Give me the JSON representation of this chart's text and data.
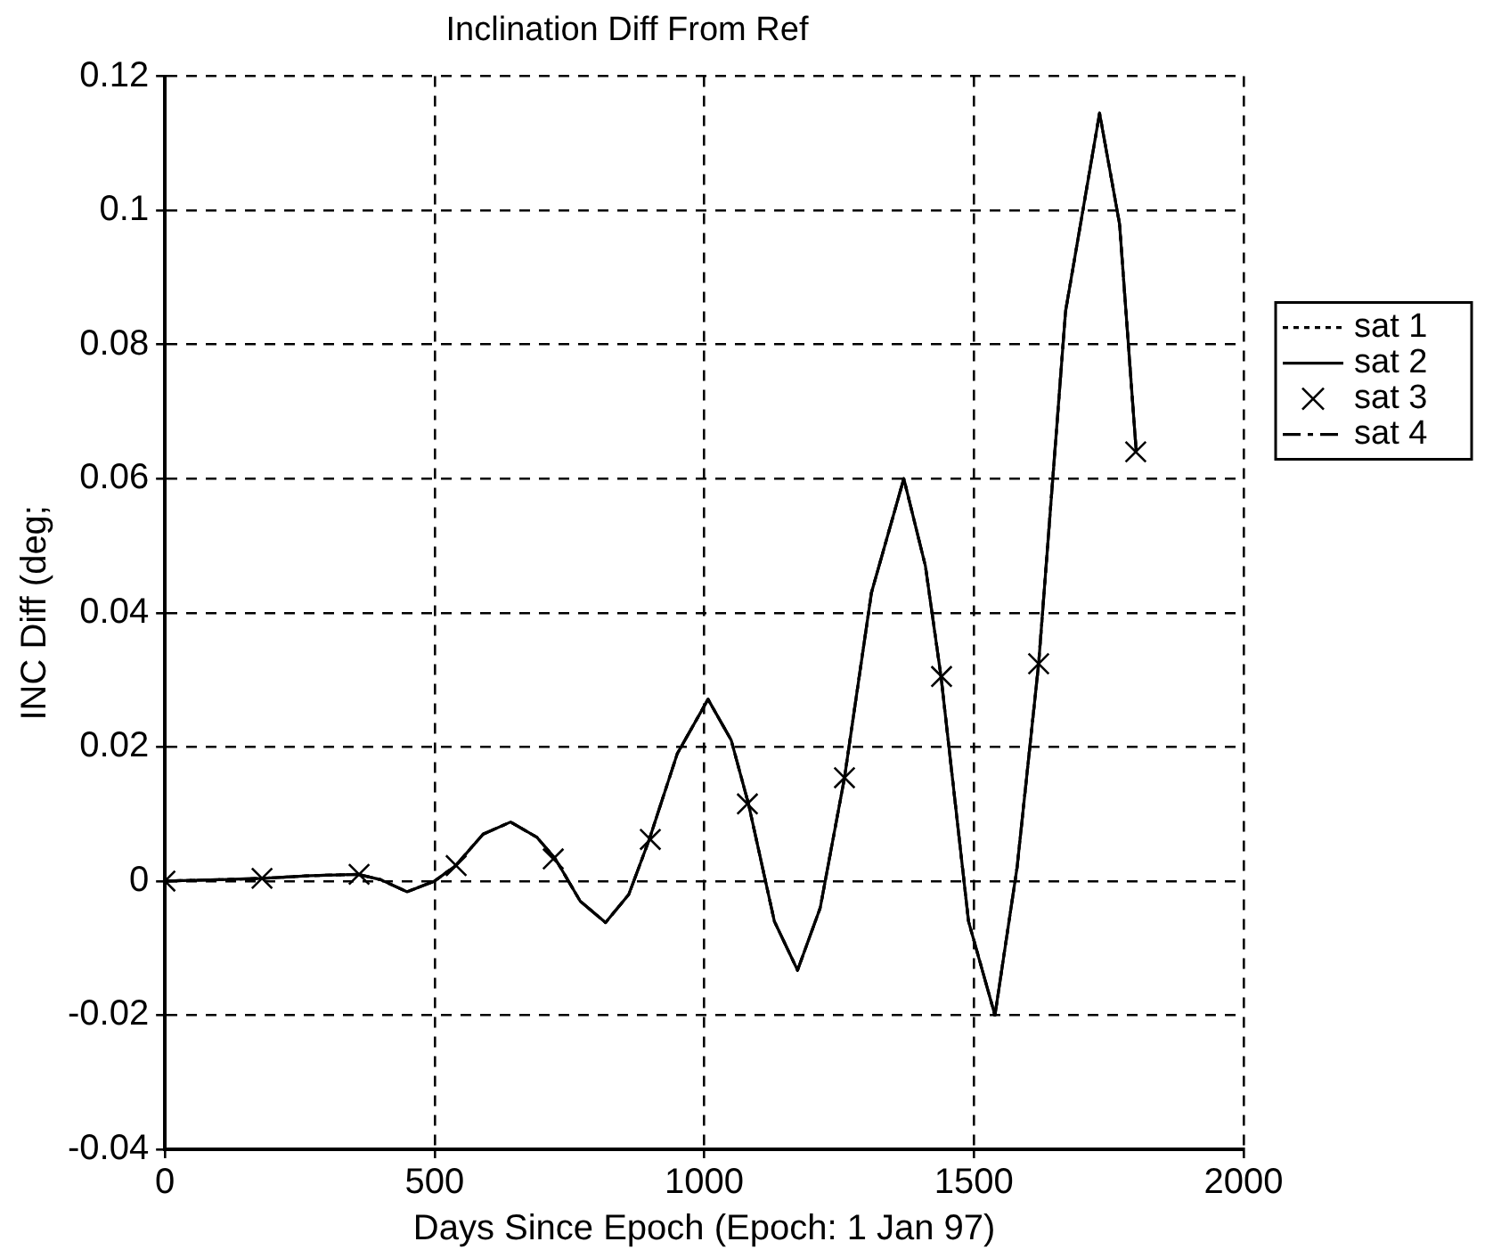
{
  "chart_data": {
    "type": "line",
    "title": "Inclination Diff From Ref",
    "xlabel": "Days Since Epoch (Epoch: 1 Jan 97)",
    "ylabel": "INC Diff (deg;",
    "xlim": [
      0,
      2000
    ],
    "xticks": [
      0,
      500,
      1000,
      1500,
      2000
    ],
    "ylim": [
      -0.04,
      0.12
    ],
    "yticks": [
      -0.04,
      -0.02,
      0,
      0.02,
      0.04,
      0.06,
      0.08,
      0.1,
      0.12
    ],
    "grid": true,
    "legend": "right",
    "series": [
      {
        "name": "sat 1",
        "color": "#000000",
        "line_style": "dotted",
        "marker": "none",
        "x": [
          0,
          100,
          181,
          270,
          358,
          400,
          449,
          500,
          539,
          590,
          641,
          690,
          724,
          770,
          817,
          860,
          898,
          950,
          1007,
          1050,
          1082,
          1130,
          1173,
          1215,
          1260,
          1310,
          1370,
          1410,
          1439,
          1490,
          1539,
          1580,
          1620,
          1670,
          1733,
          1770,
          1801
        ],
        "values": [
          0,
          0.0002,
          0.0004,
          0.0008,
          0.001,
          0.0002,
          -0.0016,
          0,
          0.0023,
          0.007,
          0.0088,
          0.0065,
          0.0033,
          -0.003,
          -0.0062,
          -0.002,
          0.0062,
          0.019,
          0.0271,
          0.021,
          0.0115,
          -0.006,
          -0.0133,
          -0.004,
          0.0154,
          0.043,
          0.06,
          0.047,
          0.0305,
          -0.006,
          -0.02,
          0.002,
          0.0324,
          0.085,
          0.1145,
          0.098,
          0.064
        ]
      },
      {
        "name": "sat 2",
        "color": "#000000",
        "line_style": "solid",
        "marker": "none",
        "x": [
          0,
          100,
          181,
          270,
          358,
          400,
          449,
          500,
          539,
          590,
          641,
          690,
          724,
          770,
          817,
          860,
          898,
          950,
          1007,
          1050,
          1082,
          1130,
          1173,
          1215,
          1260,
          1310,
          1370,
          1410,
          1439,
          1490,
          1539,
          1580,
          1620,
          1670,
          1733,
          1770,
          1801
        ],
        "values": [
          0,
          0.0002,
          0.0004,
          0.0008,
          0.001,
          0.0002,
          -0.0016,
          0,
          0.0023,
          0.007,
          0.0088,
          0.0065,
          0.0033,
          -0.003,
          -0.0062,
          -0.002,
          0.0062,
          0.019,
          0.0271,
          0.021,
          0.0115,
          -0.006,
          -0.0133,
          -0.004,
          0.0154,
          0.043,
          0.06,
          0.047,
          0.0305,
          -0.006,
          -0.02,
          0.002,
          0.0324,
          0.085,
          0.1145,
          0.098,
          0.064
        ]
      },
      {
        "name": "sat 3",
        "color": "#000000",
        "type": "scatter",
        "marker": "cross",
        "x": [
          0,
          180,
          360,
          540,
          720,
          900,
          1080,
          1260,
          1440,
          1620,
          1800
        ],
        "values": [
          0,
          0.0004,
          0.001,
          0.0023,
          0.0033,
          0.0062,
          0.0115,
          0.0154,
          0.0305,
          0.0324,
          0.064
        ]
      },
      {
        "name": "sat 4",
        "color": "#000000",
        "line_style": "dashed",
        "marker": "none",
        "x": [
          0,
          100,
          181,
          270,
          358,
          400,
          449,
          500,
          539,
          590,
          641,
          690,
          724,
          770,
          817,
          860,
          898,
          950,
          1007,
          1050,
          1082,
          1130,
          1173,
          1215,
          1260,
          1310,
          1370,
          1410,
          1439,
          1490,
          1539,
          1580,
          1620,
          1670,
          1733,
          1770,
          1801
        ],
        "values": [
          0,
          0.0002,
          0.0004,
          0.0008,
          0.001,
          0.0002,
          -0.0016,
          0,
          0.0023,
          0.007,
          0.0088,
          0.0065,
          0.0033,
          -0.003,
          -0.0062,
          -0.002,
          0.0062,
          0.019,
          0.0271,
          0.021,
          0.0115,
          -0.006,
          -0.0133,
          -0.004,
          0.0154,
          0.043,
          0.06,
          0.047,
          0.0305,
          -0.006,
          -0.02,
          0.002,
          0.0324,
          0.085,
          0.1145,
          0.098,
          0.064
        ]
      }
    ]
  }
}
